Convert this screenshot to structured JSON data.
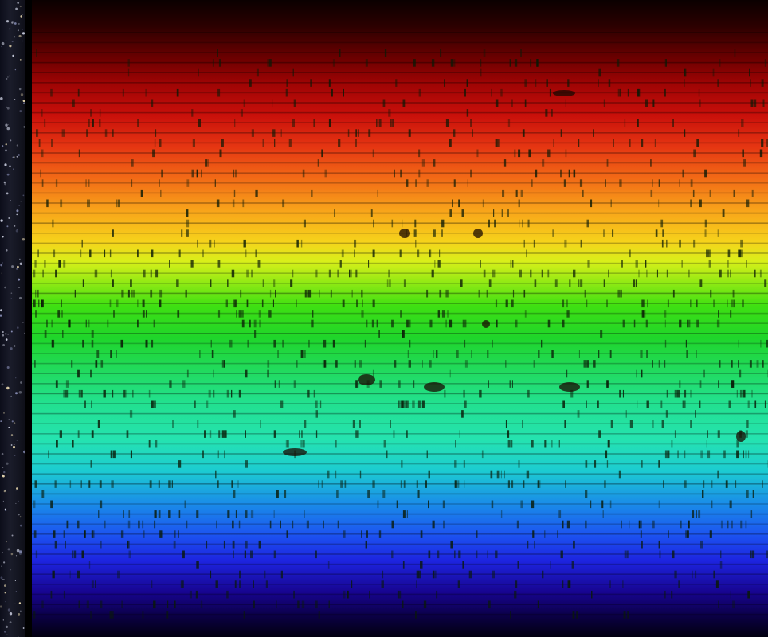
{
  "image": {
    "subject": "solar-spectrum",
    "colors": {
      "background": "#000000",
      "red": "#c80f0a",
      "orange": "#f26a16",
      "yellow": "#f6d31b",
      "green": "#1fd52a",
      "cyan": "#25e3b0",
      "blue": "#1c53f0",
      "violet": "#17048f",
      "absorption_line": "#0a1a06"
    }
  }
}
